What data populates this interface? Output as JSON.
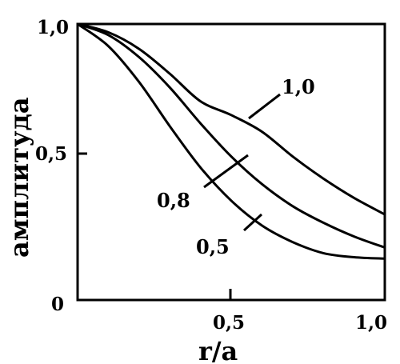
{
  "chart_data": {
    "type": "line",
    "xlabel": "r/a",
    "ylabel": "амплитуда",
    "xlim": [
      0,
      1
    ],
    "ylim": [
      0,
      1
    ],
    "x_ticks": [
      {
        "value": 0.5,
        "label": "0,5"
      },
      {
        "value": 1.0,
        "label": "1,0"
      }
    ],
    "y_ticks": [
      {
        "value": 1.0,
        "label": "1,0"
      },
      {
        "value": 0.5,
        "label": "0,5"
      }
    ],
    "origin_label": "0",
    "grid": false,
    "legend": "none",
    "series": [
      {
        "name": "1,0",
        "x": [
          0,
          0.1,
          0.2,
          0.3,
          0.4,
          0.5,
          0.6,
          0.7,
          0.8,
          0.9,
          1.0
        ],
        "y": [
          1.0,
          0.97,
          0.91,
          0.82,
          0.72,
          0.67,
          0.61,
          0.52,
          0.44,
          0.37,
          0.31
        ]
      },
      {
        "name": "0,8",
        "x": [
          0,
          0.1,
          0.2,
          0.3,
          0.4,
          0.5,
          0.6,
          0.7,
          0.8,
          0.9,
          1.0
        ],
        "y": [
          1.0,
          0.96,
          0.88,
          0.77,
          0.64,
          0.52,
          0.42,
          0.34,
          0.28,
          0.23,
          0.19
        ]
      },
      {
        "name": "0,5",
        "x": [
          0,
          0.1,
          0.2,
          0.3,
          0.4,
          0.5,
          0.6,
          0.7,
          0.8,
          0.9,
          1.0
        ],
        "y": [
          1.0,
          0.92,
          0.79,
          0.63,
          0.48,
          0.36,
          0.27,
          0.21,
          0.17,
          0.155,
          0.15
        ]
      }
    ]
  }
}
